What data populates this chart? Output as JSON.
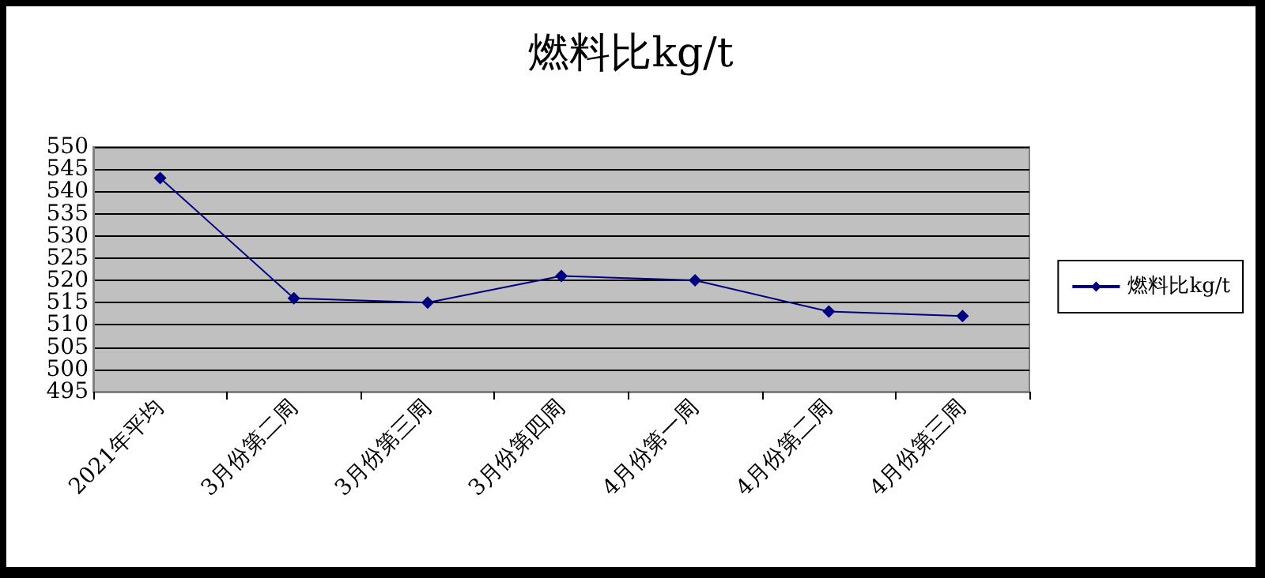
{
  "chart_data": {
    "type": "line",
    "title": "燃料比kg/t",
    "categories": [
      "2021年平均",
      "3月份第二周",
      "3月份第三周",
      "3月份第四周",
      "4月份第一周",
      "4月份第二周",
      "4月份第三周"
    ],
    "series": [
      {
        "name": "燃料比kg/t",
        "color": "#000080",
        "values": [
          543,
          516,
          515,
          521,
          520,
          513,
          512
        ]
      }
    ],
    "ylim": [
      495,
      550
    ],
    "yticks": [
      495,
      500,
      505,
      510,
      515,
      520,
      525,
      530,
      535,
      540,
      545,
      550
    ],
    "grid": "y",
    "legend": "right",
    "marker": "diamond",
    "line_style": "solid"
  }
}
